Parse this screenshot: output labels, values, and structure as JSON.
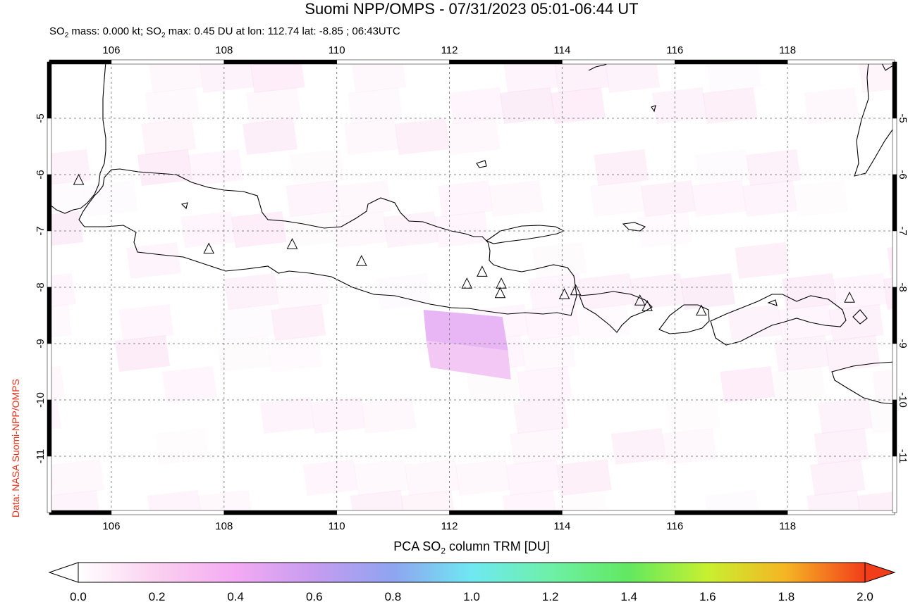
{
  "title": "Suomi NPP/OMPS - 07/31/2023 05:01-06:44 UT",
  "subtitle_parts": {
    "p1": "SO",
    "sub1": "2",
    "p2": " mass: 0.000 kt; SO",
    "sub2": "2",
    "p3": " max: 0.45 DU at lon: 112.74 lat: -8.85 ; 06:43UTC"
  },
  "credit": "Data: NASA Suomi-NPP/OMPS",
  "colorbar": {
    "title_pre": "PCA SO",
    "title_sub": "2",
    "title_post": " column TRM [DU]",
    "ticks": [
      "0.0",
      "0.2",
      "0.4",
      "0.6",
      "0.8",
      "1.0",
      "1.2",
      "1.4",
      "1.6",
      "1.8",
      "2.0"
    ],
    "range": [
      0.0,
      2.0
    ],
    "colors": [
      "#ffffff",
      "#fbd0f0",
      "#f3aaf2",
      "#c69cf0",
      "#8fa4f0",
      "#6fe8f2",
      "#6ef0a8",
      "#62e860",
      "#c8f030",
      "#f5b424",
      "#f23d1a"
    ]
  },
  "map": {
    "lon_range": [
      104.9,
      119.9
    ],
    "lat_range": [
      -12.0,
      -4.0
    ],
    "lon_ticks": [
      "106",
      "108",
      "110",
      "112",
      "114",
      "116",
      "118"
    ],
    "lat_ticks": [
      "-5",
      "-6",
      "-7",
      "-8",
      "-9",
      "-10",
      "-11"
    ],
    "volcanoes": [
      {
        "lon": 105.42,
        "lat": -6.1
      },
      {
        "lon": 107.73,
        "lat": -7.32
      },
      {
        "lon": 109.21,
        "lat": -7.24
      },
      {
        "lon": 110.44,
        "lat": -7.54
      },
      {
        "lon": 112.31,
        "lat": -7.94
      },
      {
        "lon": 112.58,
        "lat": -7.73
      },
      {
        "lon": 112.92,
        "lat": -7.94
      },
      {
        "lon": 112.9,
        "lat": -8.11
      },
      {
        "lon": 114.04,
        "lat": -8.13
      },
      {
        "lon": 114.24,
        "lat": -8.06
      },
      {
        "lon": 115.38,
        "lat": -8.24
      },
      {
        "lon": 115.51,
        "lat": -8.34
      },
      {
        "lon": 116.47,
        "lat": -8.42
      },
      {
        "lon": 119.1,
        "lat": -8.19
      }
    ],
    "so2_max_cell": {
      "value": 0.45,
      "lon": 112.74,
      "lat": -8.85
    }
  }
}
